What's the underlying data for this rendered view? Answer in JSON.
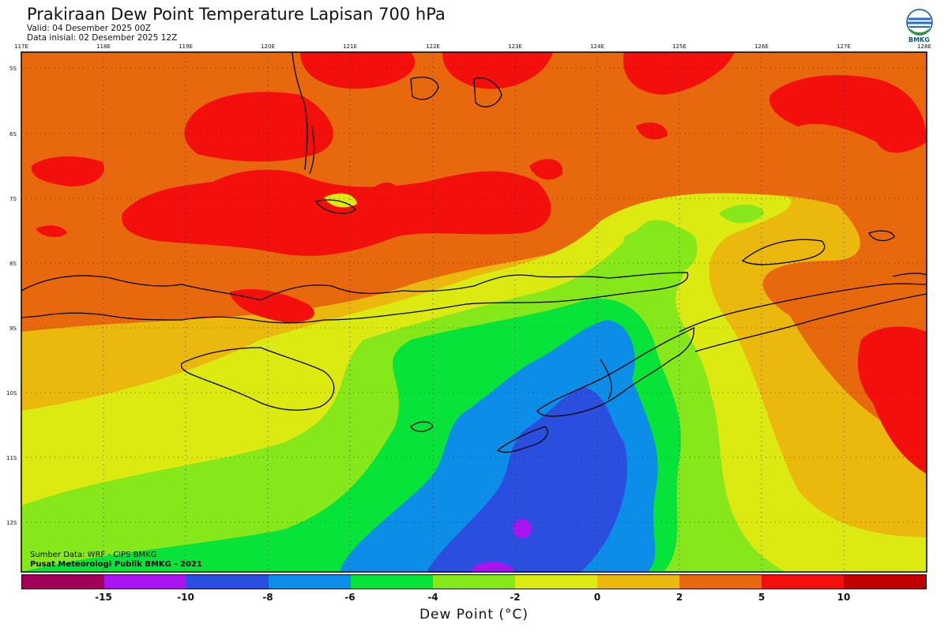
{
  "header": {
    "title": "Prakiraan Dew Point Temperature Lapisan 700 hPa",
    "valid": "Valid: 04 Desember 2025 00Z",
    "initial": "Data inisial: 02 Desember 2025 12Z",
    "logo_text": "BMKG"
  },
  "map": {
    "lon_labels": [
      "117E",
      "118E",
      "119E",
      "120E",
      "121E",
      "122E",
      "123E",
      "124E",
      "125E",
      "126E",
      "127E",
      "128E"
    ],
    "lat_labels": [
      "5S",
      "6S",
      "7S",
      "8S",
      "9S",
      "10S",
      "11S",
      "12S"
    ]
  },
  "credits": {
    "source": "Sumber Data: WRF - CIPS BMKG",
    "org": "Pusat Meteorologi Publik BMKG - 2021"
  },
  "colorbar": {
    "colors": [
      "#a0005a",
      "#a815f0",
      "#2a4fdf",
      "#0c8ee8",
      "#08e33a",
      "#86e81a",
      "#dcea12",
      "#ebb90d",
      "#e8690d",
      "#f30f0c",
      "#c00000"
    ],
    "labels": [
      "-15",
      "-10",
      "-8",
      "-6",
      "-4",
      "-2",
      "0",
      "2",
      "5",
      "10"
    ],
    "title": "Dew Point (°C)"
  }
}
